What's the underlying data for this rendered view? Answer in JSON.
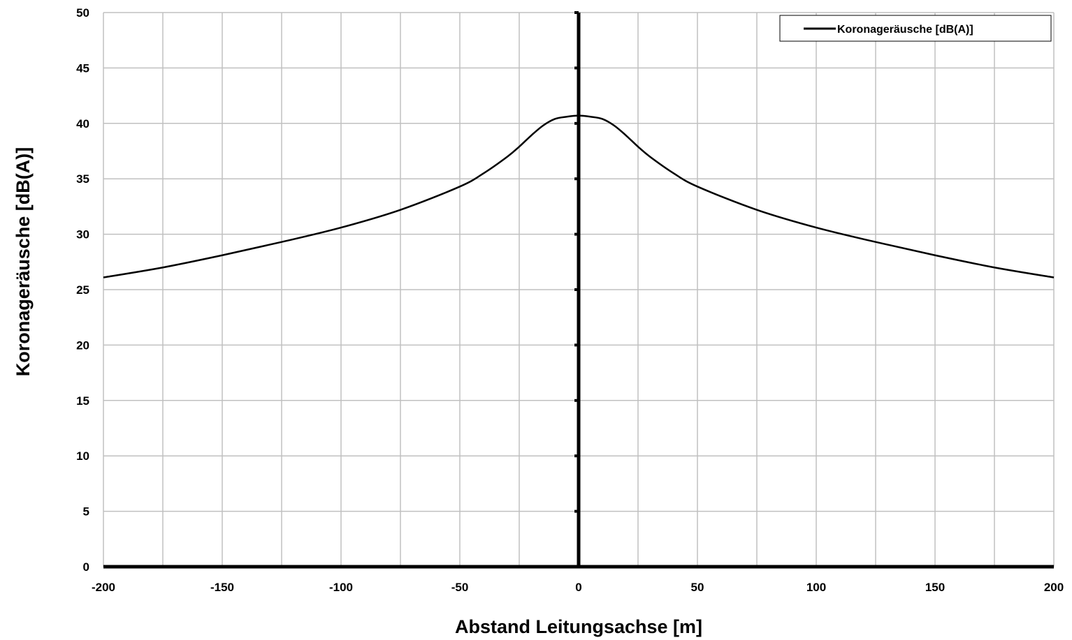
{
  "chart_data": {
    "type": "line",
    "xlabel": "Abstand Leitungsachse [m]",
    "ylabel": "Koronageräusche [dB(A)]",
    "xlim": [
      -200,
      200
    ],
    "ylim": [
      0,
      50
    ],
    "x_ticks": [
      -200,
      -150,
      -100,
      -50,
      0,
      50,
      100,
      150,
      200
    ],
    "y_ticks": [
      0,
      5,
      10,
      15,
      20,
      25,
      30,
      35,
      40,
      45,
      50
    ],
    "x_minor_grid_step": 25,
    "grid": true,
    "legend_position": "top-right",
    "colors": {
      "series": "#000000",
      "grid": "#c0c0c0",
      "axis": "#000000"
    },
    "series": [
      {
        "name": "Koronageräusche [dB(A)]",
        "x": [
          -200,
          -175,
          -150,
          -125,
          -100,
          -75,
          -50,
          -40,
          -30,
          -25,
          -20,
          -15,
          -10,
          -5,
          0,
          5,
          10,
          15,
          20,
          25,
          30,
          40,
          50,
          75,
          100,
          125,
          150,
          175,
          200
        ],
        "y": [
          26.1,
          27.0,
          28.1,
          29.3,
          30.6,
          32.2,
          34.3,
          35.5,
          37.0,
          37.9,
          38.9,
          39.8,
          40.4,
          40.6,
          40.7,
          40.6,
          40.4,
          39.8,
          38.9,
          37.9,
          37.0,
          35.5,
          34.3,
          32.2,
          30.6,
          29.3,
          28.1,
          27.0,
          26.1
        ]
      }
    ]
  }
}
